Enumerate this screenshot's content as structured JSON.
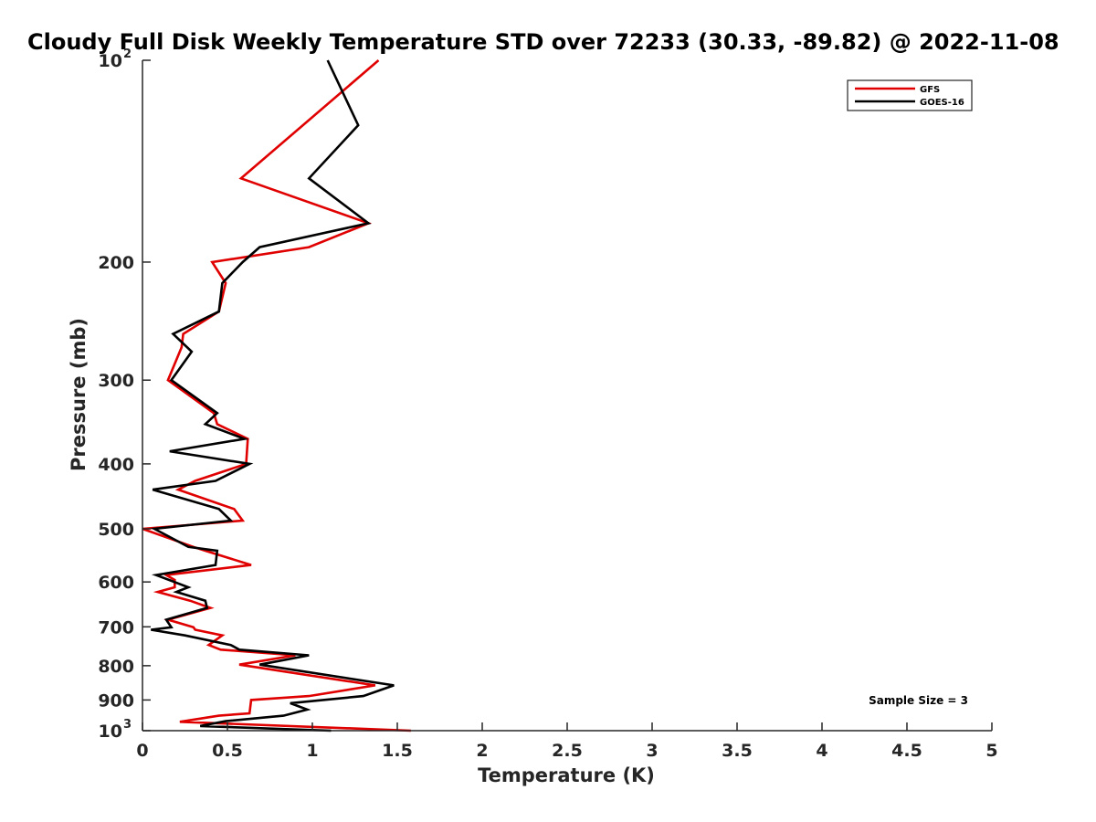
{
  "chart_data": {
    "type": "line",
    "title": "Cloudy Full Disk Weekly Temperature STD over 72233 (30.33, -89.82) @ 2022-11-08",
    "xlabel": "Temperature (K)",
    "ylabel": "Pressure (mb)",
    "xlim": [
      0,
      5
    ],
    "ylim": [
      100,
      1000
    ],
    "yscale": "log",
    "y_reversed": true,
    "xticks": [
      0,
      0.5,
      1,
      1.5,
      2,
      2.5,
      3,
      3.5,
      4,
      4.5,
      5
    ],
    "xtick_labels": [
      "0",
      "0.5",
      "1",
      "1.5",
      "2",
      "2.5",
      "3",
      "3.5",
      "4",
      "4.5",
      "5"
    ],
    "yticks": [
      {
        "value": 100,
        "base": "10",
        "exp": "2"
      },
      {
        "value": 200,
        "label": "200"
      },
      {
        "value": 300,
        "label": "300"
      },
      {
        "value": 400,
        "label": "400"
      },
      {
        "value": 500,
        "label": "500"
      },
      {
        "value": 600,
        "label": "600"
      },
      {
        "value": 700,
        "label": "700"
      },
      {
        "value": 800,
        "label": "800"
      },
      {
        "value": 900,
        "label": "900"
      },
      {
        "value": 1000,
        "base": "10",
        "exp": "3"
      }
    ],
    "legend_position": "top-right",
    "annotation": "Sample Size = 3",
    "series": [
      {
        "name": "GFS",
        "color": "#e00000",
        "points": [
          [
            1.39,
            100
          ],
          [
            0.58,
            150
          ],
          [
            1.33,
            175
          ],
          [
            0.98,
            190
          ],
          [
            0.41,
            200
          ],
          [
            0.49,
            215
          ],
          [
            0.45,
            237
          ],
          [
            0.24,
            256
          ],
          [
            0.23,
            268
          ],
          [
            0.15,
            300
          ],
          [
            0.42,
            336
          ],
          [
            0.44,
            349
          ],
          [
            0.62,
            367
          ],
          [
            0.61,
            400
          ],
          [
            0.31,
            424
          ],
          [
            0.21,
            437
          ],
          [
            0.54,
            467
          ],
          [
            0.59,
            486
          ],
          [
            0.0,
            500
          ],
          [
            0.3,
            532
          ],
          [
            0.37,
            539
          ],
          [
            0.64,
            566
          ],
          [
            0.14,
            586
          ],
          [
            0.19,
            596
          ],
          [
            0.19,
            611
          ],
          [
            0.09,
            621
          ],
          [
            0.28,
            640
          ],
          [
            0.4,
            656
          ],
          [
            0.15,
            683
          ],
          [
            0.3,
            701
          ],
          [
            0.31,
            707
          ],
          [
            0.47,
            721
          ],
          [
            0.39,
            745
          ],
          [
            0.46,
            757
          ],
          [
            0.9,
            772
          ],
          [
            0.57,
            797
          ],
          [
            1.37,
            856
          ],
          [
            0.98,
            888
          ],
          [
            0.64,
            900
          ],
          [
            0.63,
            942
          ],
          [
            0.45,
            950
          ],
          [
            0.22,
            970
          ],
          [
            1.58,
            1000
          ]
        ]
      },
      {
        "name": "GOES-16",
        "color": "#000000",
        "points": [
          [
            1.09,
            100
          ],
          [
            1.27,
            125
          ],
          [
            0.98,
            150
          ],
          [
            1.33,
            175
          ],
          [
            0.69,
            190
          ],
          [
            0.59,
            200
          ],
          [
            0.47,
            215
          ],
          [
            0.45,
            237
          ],
          [
            0.18,
            256
          ],
          [
            0.29,
            272
          ],
          [
            0.17,
            300
          ],
          [
            0.44,
            336
          ],
          [
            0.37,
            349
          ],
          [
            0.6,
            367
          ],
          [
            0.16,
            383
          ],
          [
            0.63,
            400
          ],
          [
            0.43,
            424
          ],
          [
            0.06,
            437
          ],
          [
            0.45,
            467
          ],
          [
            0.52,
            486
          ],
          [
            0.07,
            500
          ],
          [
            0.27,
            532
          ],
          [
            0.44,
            539
          ],
          [
            0.43,
            566
          ],
          [
            0.08,
            586
          ],
          [
            0.27,
            611
          ],
          [
            0.2,
            621
          ],
          [
            0.37,
            640
          ],
          [
            0.38,
            656
          ],
          [
            0.14,
            683
          ],
          [
            0.17,
            701
          ],
          [
            0.05,
            707
          ],
          [
            0.25,
            721
          ],
          [
            0.52,
            745
          ],
          [
            0.57,
            757
          ],
          [
            0.98,
            772
          ],
          [
            0.69,
            797
          ],
          [
            1.48,
            856
          ],
          [
            1.3,
            888
          ],
          [
            0.87,
            910
          ],
          [
            0.97,
            930
          ],
          [
            0.83,
            950
          ],
          [
            0.49,
            968
          ],
          [
            0.34,
            984
          ],
          [
            1.11,
            1000
          ]
        ]
      }
    ]
  }
}
